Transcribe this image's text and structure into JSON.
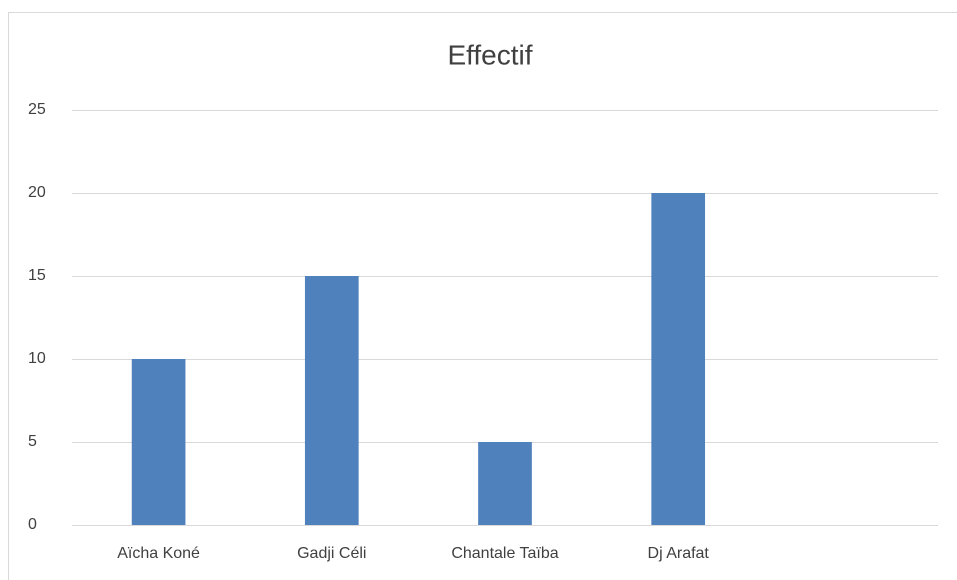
{
  "chart_data": {
    "type": "bar",
    "title": "Effectif",
    "categories": [
      "Aïcha Koné",
      "Gadji Céli",
      "Chantale Taïba",
      "Dj Arafat",
      null
    ],
    "values": [
      10,
      15,
      5,
      20,
      null
    ],
    "color": "#4f81bd",
    "ylim": [
      0,
      25
    ],
    "yticks": [
      0,
      5,
      10,
      15,
      20,
      25
    ],
    "grid": true
  }
}
